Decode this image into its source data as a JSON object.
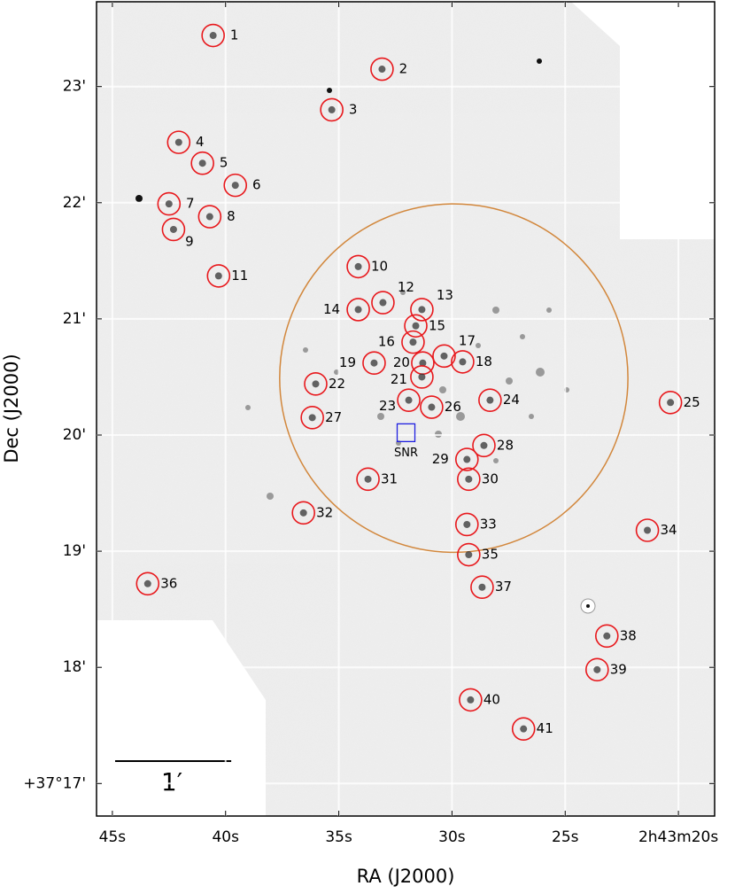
{
  "chart_data": {
    "type": "scatter",
    "xlabel": "RA (J2000)",
    "ylabel": "Dec (J2000)",
    "labels": [
      "1",
      "2",
      "3",
      "4",
      "5",
      "6",
      "7",
      "8",
      "9",
      "10",
      "11",
      "12",
      "13",
      "14",
      "15",
      "16",
      "17",
      "18",
      "19",
      "20",
      "21",
      "22",
      "23",
      "24",
      "25",
      "26",
      "27",
      "28",
      "29",
      "30",
      "31",
      "32",
      "33",
      "34",
      "35",
      "36",
      "37",
      "38",
      "39",
      "40",
      "41"
    ],
    "x": [
      40.55,
      33.09,
      35.31,
      42.07,
      41.02,
      39.57,
      42.5,
      40.7,
      42.3,
      34.14,
      40.31,
      33.05,
      31.33,
      34.14,
      31.6,
      31.72,
      30.35,
      29.53,
      33.44,
      31.29,
      31.33,
      36.02,
      31.91,
      28.32,
      20.35,
      30.9,
      36.17,
      28.59,
      29.34,
      29.26,
      33.71,
      36.56,
      29.34,
      21.37,
      29.26,
      43.44,
      28.67,
      23.16,
      23.59,
      29.18,
      26.84
    ],
    "y": [
      23.44,
      23.15,
      22.8,
      22.52,
      22.34,
      22.15,
      21.99,
      21.88,
      21.77,
      21.45,
      21.37,
      21.14,
      21.08,
      21.08,
      20.94,
      20.8,
      20.68,
      20.63,
      20.62,
      20.62,
      20.5,
      20.44,
      20.3,
      20.3,
      20.28,
      20.24,
      20.15,
      19.91,
      19.79,
      19.62,
      19.62,
      19.33,
      19.23,
      19.18,
      18.97,
      18.72,
      18.69,
      18.27,
      17.98,
      17.72,
      17.47
    ],
    "color": "#e8181c",
    "xlim": [
      45.7,
      18.4
    ],
    "ylim": [
      16.72,
      23.73
    ],
    "xticks": [
      {
        "value": 45,
        "label": "45s"
      },
      {
        "value": 40,
        "label": "40s"
      },
      {
        "value": 35,
        "label": "35s"
      },
      {
        "value": 30,
        "label": "30s"
      },
      {
        "value": 25,
        "label": "25s"
      },
      {
        "value": 20,
        "label": "2h43m20s"
      }
    ],
    "yticks": [
      {
        "value": 23,
        "label": "23'"
      },
      {
        "value": 22,
        "label": "22'"
      },
      {
        "value": 21,
        "label": "21'"
      },
      {
        "value": 20,
        "label": "20'"
      },
      {
        "value": 19,
        "label": "19'"
      },
      {
        "value": 18,
        "label": "18'"
      },
      {
        "value": 17,
        "label": "+37°17'"
      }
    ],
    "grid": true,
    "region": {
      "center_x": 29.92,
      "center_y": 20.49,
      "radius": 1.5,
      "color": "#d2873c"
    },
    "snr": {
      "x": 32.03,
      "y": 20.02,
      "label": "SNR",
      "color": "#1f1fe0"
    },
    "scalebar": {
      "length": 1,
      "label": "1′"
    }
  }
}
